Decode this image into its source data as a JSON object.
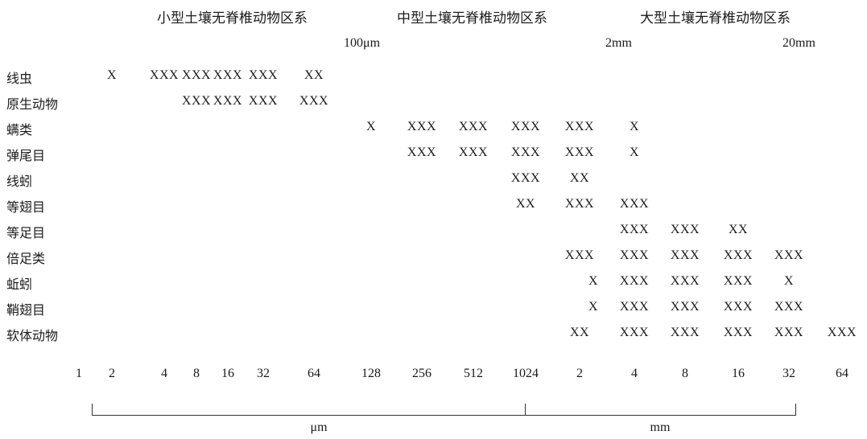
{
  "chart_data": {
    "type": "table",
    "zones": [
      "小型土壤无脊椎动物区系",
      "中型土壤无脊椎动物区系",
      "大型土壤无脊椎动物区系"
    ],
    "boundary_marks": [
      "100μm",
      "2mm",
      "20mm"
    ],
    "size_ticks": [
      "1",
      "2",
      "4",
      "8",
      "16",
      "32",
      "64",
      "128",
      "256",
      "512",
      "1024",
      "2",
      "4",
      "8",
      "16",
      "32",
      "64"
    ],
    "units": [
      "μm",
      "mm"
    ],
    "rows": [
      {
        "label": "线虫",
        "cells": [
          {
            "col": 1,
            "text": "X"
          },
          {
            "col": 2,
            "text": "XXX"
          },
          {
            "col": 3,
            "text": "XXX"
          },
          {
            "col": 4,
            "text": "XXX"
          },
          {
            "col": 5,
            "text": "XXX"
          },
          {
            "col": 6,
            "text": "XX"
          }
        ]
      },
      {
        "label": "原生动物",
        "cells": [
          {
            "col": 3,
            "text": "XXX"
          },
          {
            "col": 4,
            "text": "XXX"
          },
          {
            "col": 5,
            "text": "XXX"
          },
          {
            "col": 6,
            "text": "XXX"
          }
        ]
      },
      {
        "label": "螨类",
        "cells": [
          {
            "col": 7,
            "text": "X"
          },
          {
            "col": 8,
            "text": "XXX"
          },
          {
            "col": 9,
            "text": "XXX"
          },
          {
            "col": 10,
            "text": "XXX"
          },
          {
            "col": 11,
            "text": "XXX"
          },
          {
            "col": 12,
            "text": "X"
          }
        ]
      },
      {
        "label": "弹尾目",
        "cells": [
          {
            "col": 8,
            "text": "XXX"
          },
          {
            "col": 9,
            "text": "XXX"
          },
          {
            "col": 10,
            "text": "XXX"
          },
          {
            "col": 11,
            "text": "XXX"
          },
          {
            "col": 12,
            "text": "X"
          }
        ]
      },
      {
        "label": "线蚓",
        "cells": [
          {
            "col": 10,
            "text": "XXX"
          },
          {
            "col": 11,
            "text": "XX"
          }
        ]
      },
      {
        "label": "等翅目",
        "cells": [
          {
            "col": 10,
            "text": "XX"
          },
          {
            "col": 11,
            "text": "XXX"
          },
          {
            "col": 12,
            "text": "XXX"
          }
        ]
      },
      {
        "label": "等足目",
        "cells": [
          {
            "col": 12,
            "text": "XXX"
          },
          {
            "col": 13,
            "text": "XXX"
          },
          {
            "col": 14,
            "text": "XX"
          }
        ]
      },
      {
        "label": "倍足类",
        "cells": [
          {
            "col": 11,
            "text": "XXX"
          },
          {
            "col": 12,
            "text": "XXX"
          },
          {
            "col": 13,
            "text": "XXX"
          },
          {
            "col": 14,
            "text": "XXX"
          },
          {
            "col": 15,
            "text": "XXX"
          }
        ]
      },
      {
        "label": "蚯蚓",
        "cells": [
          {
            "col": 11.25,
            "text": "X"
          },
          {
            "col": 12,
            "text": "XXX"
          },
          {
            "col": 13,
            "text": "XXX"
          },
          {
            "col": 14,
            "text": "XXX"
          },
          {
            "col": 15,
            "text": "X"
          }
        ]
      },
      {
        "label": "鞘翅目",
        "cells": [
          {
            "col": 11.25,
            "text": "X"
          },
          {
            "col": 12,
            "text": "XXX"
          },
          {
            "col": 13,
            "text": "XXX"
          },
          {
            "col": 14,
            "text": "XXX"
          },
          {
            "col": 15,
            "text": "XXX"
          }
        ]
      },
      {
        "label": "软体动物",
        "cells": [
          {
            "col": 11,
            "text": "XX"
          },
          {
            "col": 12,
            "text": "XXX"
          },
          {
            "col": 13,
            "text": "XXX"
          },
          {
            "col": 14,
            "text": "XXX"
          },
          {
            "col": 15,
            "text": "XXX"
          },
          {
            "col": 16,
            "text": "XXX"
          }
        ]
      }
    ]
  }
}
